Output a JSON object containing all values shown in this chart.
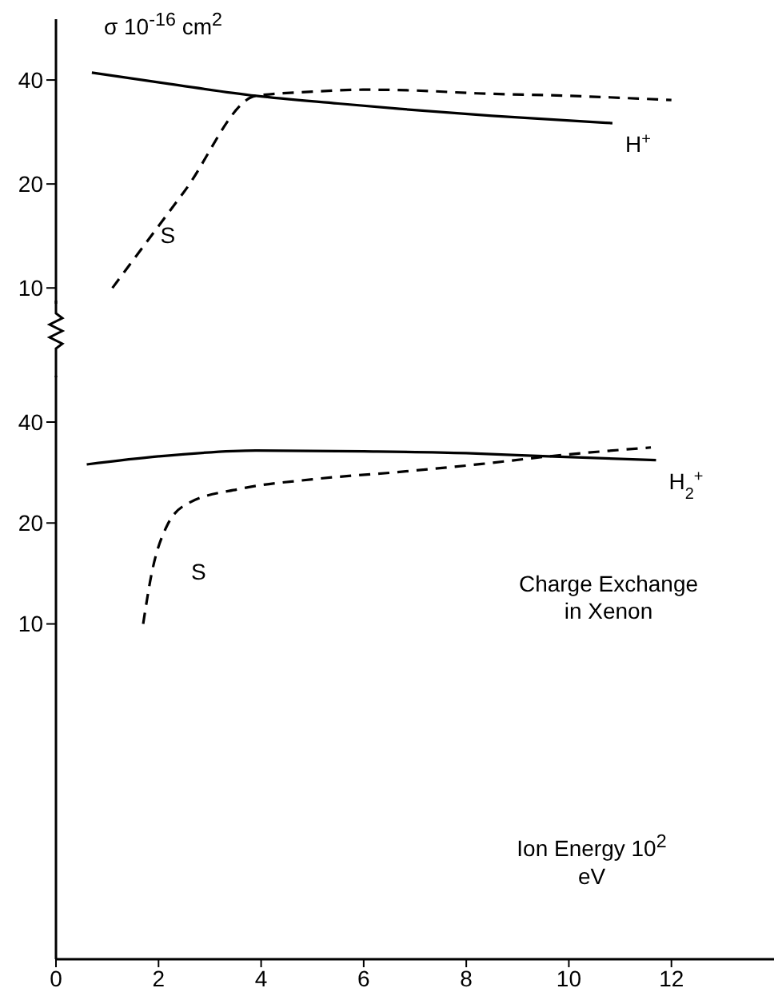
{
  "chart_data": [
    {
      "type": "line",
      "ylabel": "σ 10$^{-16}$ cm$^{2}$",
      "log": "y",
      "xlim": [
        0,
        14
      ],
      "ylim": [
        9,
        60
      ],
      "yticks": [
        10,
        20,
        40
      ],
      "tick_labels": "y",
      "series": [
        {
          "name": "H$^{+}$",
          "color": "#000000",
          "line_style": "solid",
          "x": [
            0.7,
            2.2,
            3.9,
            5.5,
            6.7,
            8.5,
            10.85
          ],
          "values": [
            42,
            39,
            36,
            34.2,
            33,
            31.5,
            30
          ]
        },
        {
          "name": "S",
          "color": "#000000",
          "line_style": "dashed",
          "x": [
            1.1,
            2.5,
            3.9,
            5,
            6,
            7,
            8.2,
            10,
            12
          ],
          "values": [
            10,
            19,
            36,
            37,
            37.5,
            37.3,
            36.6,
            36,
            35
          ]
        }
      ]
    },
    {
      "type": "line",
      "xlabel": "Ion Energy 10$^{2}$ eV",
      "log": "y",
      "xlim": [
        0,
        14
      ],
      "xticks": [
        0,
        2,
        4,
        6,
        8,
        10,
        12
      ],
      "ylim": [
        1,
        55
      ],
      "yticks": [
        10,
        20,
        40
      ],
      "annotations": [
        "Charge Exchange in Xenon"
      ],
      "series": [
        {
          "name": "H$_{2}$$^{+}$",
          "color": "#000000",
          "line_style": "solid",
          "x": [
            0.6,
            2,
            3.9,
            6,
            8,
            9.6,
            11.7
          ],
          "values": [
            29.9,
            31.6,
            32.9,
            32.7,
            32.3,
            31.6,
            30.8
          ]
        },
        {
          "name": "S",
          "color": "#000000",
          "line_style": "dashed",
          "x": [
            1.7,
            1.86,
            2.17,
            2.6,
            3.6,
            5,
            6.7,
            8.3,
            9.6,
            11.6
          ],
          "values": [
            10,
            14,
            19.7,
            23,
            25.3,
            27,
            28.4,
            30,
            31.6,
            33.6
          ]
        }
      ]
    }
  ]
}
